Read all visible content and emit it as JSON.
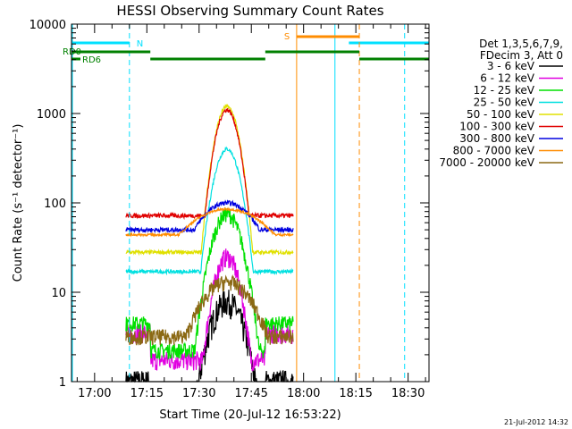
{
  "chart_data": {
    "type": "line",
    "title": "HESSI Observing Summary Count Rates",
    "xlabel": "Start Time (20-Jul-12 16:53:22)",
    "ylabel": "Count Rate (s⁻¹ detector⁻¹)",
    "y_scale": "log",
    "ylim": [
      1,
      10000
    ],
    "x_ticks": [
      "17:00",
      "17:15",
      "17:30",
      "17:45",
      "18:00",
      "18:15",
      "18:30"
    ],
    "y_ticks": [
      "1",
      "10",
      "100",
      "1000",
      "10000"
    ],
    "legend_placement": "top-right",
    "legend_header": [
      "Det 1,3,5,6,7,9,",
      "FDecim 3, Att 0"
    ],
    "series": [
      {
        "name": "3 - 6 keV",
        "color": "#000000"
      },
      {
        "name": "6 - 12 keV",
        "color": "#e000e0"
      },
      {
        "name": "12 - 25 keV",
        "color": "#00e000"
      },
      {
        "name": "25 - 50 keV",
        "color": "#00e0e0"
      },
      {
        "name": "50 - 100 keV",
        "color": "#e0e000"
      },
      {
        "name": "100 - 300 keV",
        "color": "#e00000"
      },
      {
        "name": "300 - 800 keV",
        "color": "#0000e0"
      },
      {
        "name": "800 - 7000 keV",
        "color": "#ff8c00"
      },
      {
        "name": "7000 - 20000 keV",
        "color": "#8b6914"
      }
    ],
    "flag_labels": {
      "night": "N",
      "saa": "S",
      "rd0": "RD0",
      "rd6": "RD6"
    },
    "footer_date": "21-Jul-2012 14:32"
  }
}
